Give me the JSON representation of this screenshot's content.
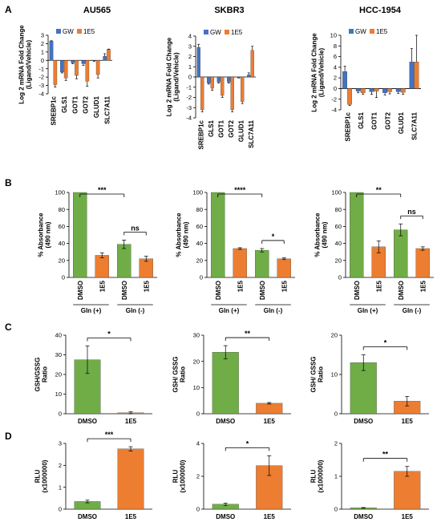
{
  "figure": {
    "panels": [
      {
        "label": "A"
      },
      {
        "label": "B"
      },
      {
        "label": "C"
      },
      {
        "label": "D"
      }
    ],
    "cell_lines": [
      "AU565",
      "SKBR3",
      "HCC-1954"
    ]
  },
  "colors": {
    "gw": "#4472C4",
    "e5": "#ED7D31",
    "green": "#70AD47",
    "axis": "#000000"
  },
  "chart_data": [
    {
      "panel": "A",
      "title": "AU565",
      "type": "bar",
      "ylabel": "Log 2 mRNA Fold Change (Ligand/Vehicle)",
      "ylim": [
        -4,
        3
      ],
      "yticks": [
        -4,
        -3,
        -2,
        -1,
        0,
        1,
        2,
        3
      ],
      "legend": [
        "GW",
        "1E5"
      ],
      "categories": [
        "SREBP1c",
        "GLS1",
        "GOT1",
        "GOT2",
        "GLUD1",
        "SLC7A11"
      ],
      "series": [
        {
          "name": "GW",
          "values": [
            2.3,
            -1.4,
            -0.3,
            -0.4,
            -0.05,
            0.5
          ],
          "errors": [
            0.05,
            0.1,
            0.1,
            0.2,
            0.05,
            0.3
          ]
        },
        {
          "name": "1E5",
          "values": [
            -2.9,
            -2.1,
            -1.8,
            -2.5,
            -1.7,
            1.3
          ],
          "errors": [
            0.3,
            0.3,
            0.4,
            0.6,
            0.4,
            0.05
          ]
        }
      ]
    },
    {
      "panel": "A",
      "title": "SKBR3",
      "type": "bar",
      "ylabel": "Log 2 mRNA Fold Change (Ligand/Vehicle)",
      "ylim": [
        -4,
        4
      ],
      "yticks": [
        -4,
        -3,
        -2,
        -1,
        0,
        1,
        2,
        3,
        4
      ],
      "legend": [
        "GW",
        "1E5"
      ],
      "categories": [
        "SREBP1c",
        "GLS1",
        "GOT1",
        "GOT2",
        "GLUD1",
        "SLC7A11"
      ],
      "series": [
        {
          "name": "GW",
          "values": [
            2.9,
            -0.6,
            -0.5,
            -0.5,
            -0.05,
            0.2
          ],
          "errors": [
            0.3,
            0.1,
            0.1,
            0.1,
            0.05,
            0.2
          ]
        },
        {
          "name": "1E5",
          "values": [
            -3.2,
            -1.1,
            -1.8,
            -3.2,
            -2.4,
            2.6
          ],
          "errors": [
            0.2,
            0.2,
            0.2,
            0.2,
            0.2,
            0.4
          ]
        }
      ]
    },
    {
      "panel": "A",
      "title": "HCC-1954",
      "type": "bar",
      "ylabel": "Log 2 mRNA Fold Change (Ligand/Vehicle)",
      "ylim": [
        -4,
        10
      ],
      "yticks": [
        -4,
        -2,
        0,
        2,
        4,
        6,
        8,
        10
      ],
      "legend": [
        "GW",
        "1E5"
      ],
      "categories": [
        "SREBP1c",
        "GLS1",
        "GOT1",
        "GOT2",
        "GLUD1",
        "SLC7A11"
      ],
      "series": [
        {
          "name": "GW",
          "values": [
            3.2,
            -0.5,
            -0.6,
            -0.8,
            -0.6,
            5.0
          ],
          "errors": [
            1.0,
            0.3,
            0.5,
            0.4,
            0.3,
            2.5
          ]
        },
        {
          "name": "1E5",
          "values": [
            -3.0,
            -0.8,
            -0.5,
            -0.6,
            -0.7,
            5.0
          ],
          "errors": [
            0.2,
            0.3,
            1.2,
            0.4,
            0.4,
            5.0
          ]
        }
      ]
    },
    {
      "panel": "B",
      "type": "bar",
      "ylabel": "% Absorbance (490 nm)",
      "ylim": [
        0,
        100
      ],
      "yticks": [
        0,
        20,
        40,
        60,
        80,
        100
      ],
      "categories": [
        "DMSO",
        "1E5",
        "DMSO",
        "1E5"
      ],
      "groups": [
        "Gln (+)",
        "Gln (-)"
      ],
      "values": [
        100,
        26,
        39,
        22
      ],
      "errors": [
        0,
        3,
        5,
        3
      ],
      "colors": [
        "green",
        "e5",
        "green",
        "e5"
      ],
      "significance": [
        {
          "from": 0,
          "to": 2,
          "text": "***"
        },
        {
          "from": 2,
          "to": 3,
          "text": "ns"
        }
      ]
    },
    {
      "panel": "B",
      "type": "bar",
      "ylabel": "% Absorbance (490 nm)",
      "ylim": [
        0,
        100
      ],
      "yticks": [
        0,
        20,
        40,
        60,
        80,
        100
      ],
      "categories": [
        "DMSO",
        "1E5",
        "DMSO",
        "1E5"
      ],
      "groups": [
        "Gln (+)",
        "Gln (-)"
      ],
      "values": [
        100,
        34,
        32,
        22
      ],
      "errors": [
        0,
        1,
        2,
        1
      ],
      "colors": [
        "green",
        "e5",
        "green",
        "e5"
      ],
      "significance": [
        {
          "from": 0,
          "to": 2,
          "text": "****"
        },
        {
          "from": 2,
          "to": 3,
          "text": "*"
        }
      ]
    },
    {
      "panel": "B",
      "type": "bar",
      "ylabel": "% Absorbance (490 nm)",
      "ylim": [
        0,
        100
      ],
      "yticks": [
        0,
        20,
        40,
        60,
        80,
        100
      ],
      "categories": [
        "DMSO",
        "1E5",
        "DMSO",
        "1E5"
      ],
      "groups": [
        "Gln (+)",
        "Gln (-)"
      ],
      "values": [
        100,
        36,
        56,
        34
      ],
      "errors": [
        0,
        7,
        7,
        2
      ],
      "colors": [
        "green",
        "e5",
        "green",
        "e5"
      ],
      "significance": [
        {
          "from": 0,
          "to": 2,
          "text": "**"
        },
        {
          "from": 2,
          "to": 3,
          "text": "ns"
        }
      ]
    },
    {
      "panel": "C",
      "type": "bar",
      "ylabel": "GSH/GSSG Ratio",
      "ylim": [
        0,
        40
      ],
      "yticks": [
        0,
        10,
        20,
        30,
        40
      ],
      "categories": [
        "DMSO",
        "1E5"
      ],
      "values": [
        27.5,
        0.5
      ],
      "errors": [
        7,
        0.5
      ],
      "colors": [
        "green",
        "e5"
      ],
      "significance": [
        {
          "from": 0,
          "to": 1,
          "text": "*"
        }
      ]
    },
    {
      "panel": "C",
      "type": "bar",
      "ylabel": "GSH/ GSSG Ratio",
      "ylim": [
        0,
        30
      ],
      "yticks": [
        0,
        10,
        20,
        30
      ],
      "categories": [
        "DMSO",
        "1E5"
      ],
      "values": [
        23.5,
        4
      ],
      "errors": [
        2.5,
        0.3
      ],
      "colors": [
        "green",
        "e5"
      ],
      "significance": [
        {
          "from": 0,
          "to": 1,
          "text": "**"
        }
      ]
    },
    {
      "panel": "C",
      "type": "bar",
      "ylabel": "GSH/ GSSG Ratio",
      "ylim": [
        0,
        20
      ],
      "yticks": [
        0,
        10,
        20
      ],
      "categories": [
        "DMSO",
        "1E5"
      ],
      "values": [
        13,
        3.2
      ],
      "errors": [
        2,
        1.2
      ],
      "colors": [
        "green",
        "e5"
      ],
      "significance": [
        {
          "from": 0,
          "to": 1,
          "text": "*"
        }
      ]
    },
    {
      "panel": "D",
      "type": "bar",
      "ylabel": "RLU (x1000000)",
      "ylim": [
        0,
        3
      ],
      "yticks": [
        0,
        1,
        2,
        3
      ],
      "categories": [
        "DMSO",
        "1E5"
      ],
      "values": [
        0.35,
        2.75
      ],
      "errors": [
        0.06,
        0.1
      ],
      "colors": [
        "green",
        "e5"
      ],
      "significance": [
        {
          "from": 0,
          "to": 1,
          "text": "***"
        }
      ]
    },
    {
      "panel": "D",
      "type": "bar",
      "ylabel": "RLU (x1000000)",
      "ylim": [
        0,
        4
      ],
      "yticks": [
        0,
        2,
        4
      ],
      "categories": [
        "DMSO",
        "1E5"
      ],
      "values": [
        0.3,
        2.65
      ],
      "errors": [
        0.07,
        0.6
      ],
      "colors": [
        "green",
        "e5"
      ],
      "significance": [
        {
          "from": 0,
          "to": 1,
          "text": "*"
        }
      ]
    },
    {
      "panel": "D",
      "type": "bar",
      "ylabel": "RLU (x1000000)",
      "ylim": [
        0,
        2
      ],
      "yticks": [
        0,
        1,
        2
      ],
      "categories": [
        "DMSO",
        "1E5"
      ],
      "values": [
        0.04,
        1.15
      ],
      "errors": [
        0.01,
        0.15
      ],
      "colors": [
        "green",
        "e5"
      ],
      "significance": [
        {
          "from": 0,
          "to": 1,
          "text": "**"
        }
      ]
    }
  ]
}
